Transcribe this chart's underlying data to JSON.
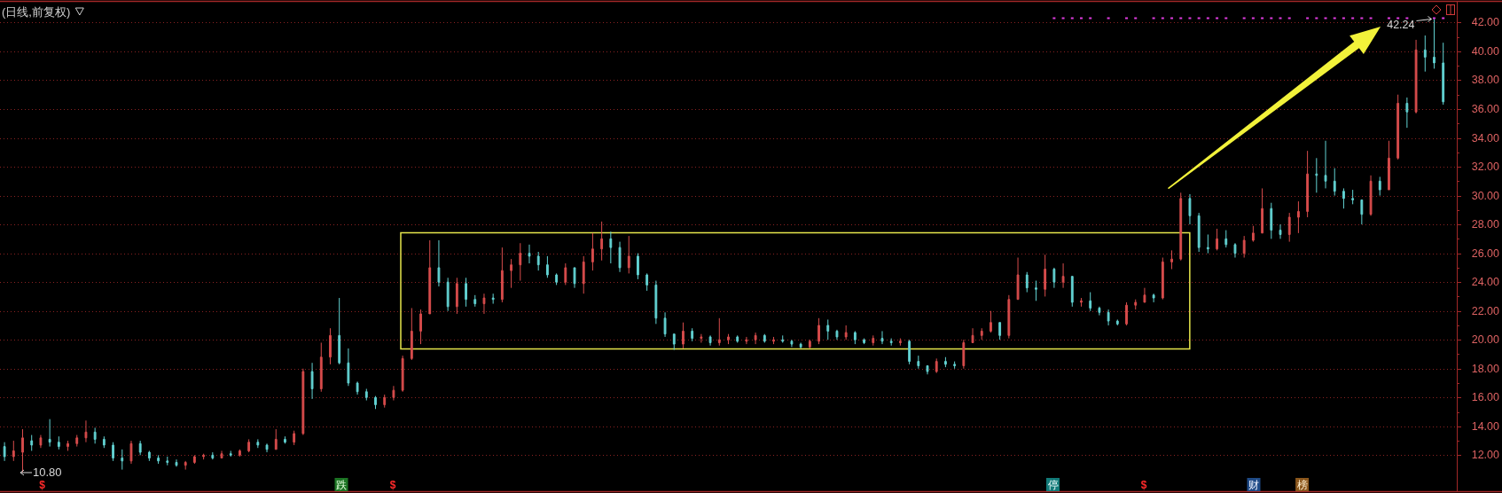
{
  "chart_data": {
    "type": "candlestick",
    "title": "(日线,前复权)",
    "categories": [
      null,
      null,
      null,
      null,
      null,
      null,
      null,
      null,
      null,
      null,
      null,
      null,
      null,
      null,
      null,
      null,
      null,
      null,
      null,
      null,
      null,
      null,
      null,
      null,
      null,
      null,
      null,
      null,
      null,
      null,
      null,
      null,
      null,
      null,
      null,
      null,
      null,
      null,
      null,
      null,
      null,
      null,
      null,
      null,
      null,
      null,
      null,
      null,
      null,
      null,
      null,
      null,
      null,
      null,
      null,
      null,
      null,
      null,
      null,
      null,
      null,
      null,
      null,
      null,
      null,
      null,
      null,
      null,
      null,
      null,
      null,
      null,
      null,
      null,
      null,
      null,
      null,
      null,
      null,
      null,
      null,
      null,
      null,
      null,
      null,
      null,
      null,
      null,
      null,
      null,
      null,
      null,
      null,
      null,
      null,
      null,
      null,
      null,
      null,
      null,
      null,
      null,
      null,
      null,
      null,
      null,
      null,
      null,
      null,
      null,
      null,
      null,
      null,
      null,
      null,
      null,
      null,
      null,
      null,
      null,
      null,
      null,
      null,
      null,
      null,
      null,
      null,
      null,
      null,
      null,
      null,
      null,
      null,
      null,
      null,
      null,
      null,
      null,
      null,
      null,
      null,
      null,
      null,
      null,
      null,
      null,
      null,
      null,
      null,
      null,
      null,
      null,
      null,
      null,
      null,
      null,
      null,
      null,
      null,
      null
    ],
    "ohlc": [
      [
        12.6,
        12.9,
        11.6,
        11.9
      ],
      [
        11.9,
        13.0,
        11.6,
        12.3
      ],
      [
        12.2,
        13.8,
        10.8,
        13.2
      ],
      [
        13.0,
        13.4,
        12.3,
        12.7
      ],
      [
        12.7,
        13.4,
        12.5,
        13.2
      ],
      [
        13.1,
        14.5,
        12.6,
        12.9
      ],
      [
        12.9,
        13.3,
        12.4,
        12.6
      ],
      [
        12.6,
        13.0,
        12.3,
        12.8
      ],
      [
        12.8,
        13.4,
        12.6,
        13.2
      ],
      [
        13.2,
        14.4,
        12.9,
        13.6
      ],
      [
        13.6,
        13.9,
        12.8,
        13.1
      ],
      [
        13.1,
        13.3,
        12.5,
        12.7
      ],
      [
        12.7,
        12.9,
        11.6,
        11.8
      ],
      [
        11.8,
        12.4,
        11.0,
        11.6
      ],
      [
        11.6,
        13.0,
        11.4,
        12.8
      ],
      [
        12.8,
        13.0,
        12.0,
        12.2
      ],
      [
        12.2,
        12.3,
        11.6,
        11.8
      ],
      [
        11.8,
        12.0,
        11.4,
        11.6
      ],
      [
        11.6,
        11.9,
        11.3,
        11.5
      ],
      [
        11.5,
        11.7,
        11.2,
        11.3
      ],
      [
        11.3,
        11.6,
        11.0,
        11.5
      ],
      [
        11.5,
        12.0,
        11.4,
        11.9
      ],
      [
        11.9,
        12.1,
        11.7,
        12.0
      ],
      [
        12.0,
        12.2,
        11.7,
        11.8
      ],
      [
        11.8,
        12.3,
        11.8,
        12.1
      ],
      [
        12.1,
        12.3,
        11.9,
        12.0
      ],
      [
        12.0,
        12.4,
        11.9,
        12.3
      ],
      [
        12.3,
        13.1,
        12.2,
        12.9
      ],
      [
        12.9,
        13.1,
        12.5,
        12.7
      ],
      [
        12.7,
        12.8,
        12.2,
        12.4
      ],
      [
        12.4,
        13.8,
        12.4,
        13.1
      ],
      [
        13.1,
        13.3,
        12.8,
        12.9
      ],
      [
        12.9,
        13.7,
        12.7,
        13.5
      ],
      [
        13.5,
        18.0,
        13.4,
        17.8
      ],
      [
        17.8,
        18.4,
        15.9,
        16.6
      ],
      [
        16.6,
        19.8,
        16.4,
        18.8
      ],
      [
        18.8,
        20.8,
        18.3,
        20.3
      ],
      [
        20.3,
        22.9,
        18.3,
        18.4
      ],
      [
        18.4,
        19.4,
        16.8,
        17.0
      ],
      [
        17.0,
        17.1,
        16.2,
        16.4
      ],
      [
        16.4,
        16.6,
        15.8,
        16.0
      ],
      [
        16.0,
        16.1,
        15.2,
        15.5
      ],
      [
        15.5,
        16.2,
        15.3,
        16.0
      ],
      [
        16.0,
        16.8,
        15.8,
        16.5
      ],
      [
        16.5,
        18.9,
        16.4,
        18.7
      ],
      [
        18.7,
        22.2,
        18.6,
        20.6
      ],
      [
        20.6,
        22.1,
        19.7,
        21.8
      ],
      [
        21.8,
        26.9,
        21.8,
        25.0
      ],
      [
        25.0,
        26.9,
        23.7,
        24.0
      ],
      [
        24.0,
        24.3,
        22.0,
        22.3
      ],
      [
        22.3,
        24.3,
        21.8,
        23.9
      ],
      [
        23.9,
        24.3,
        22.3,
        22.8
      ],
      [
        22.8,
        23.1,
        22.3,
        22.5
      ],
      [
        22.5,
        23.2,
        21.8,
        22.9
      ],
      [
        22.9,
        23.2,
        22.5,
        22.8
      ],
      [
        22.8,
        26.4,
        22.6,
        24.8
      ],
      [
        24.8,
        25.6,
        23.6,
        25.2
      ],
      [
        25.2,
        26.7,
        24.1,
        26.0
      ],
      [
        26.0,
        26.6,
        25.3,
        25.8
      ],
      [
        25.8,
        26.1,
        24.8,
        25.2
      ],
      [
        25.2,
        25.8,
        24.3,
        24.5
      ],
      [
        24.5,
        24.6,
        23.8,
        24.0
      ],
      [
        24.0,
        25.3,
        23.8,
        25.0
      ],
      [
        25.0,
        25.0,
        23.6,
        23.9
      ],
      [
        23.9,
        25.8,
        23.2,
        25.4
      ],
      [
        25.4,
        27.4,
        24.8,
        26.3
      ],
      [
        26.3,
        28.2,
        25.5,
        27.0
      ],
      [
        27.0,
        27.5,
        25.3,
        26.4
      ],
      [
        26.4,
        26.8,
        24.7,
        25.0
      ],
      [
        25.0,
        27.2,
        24.6,
        25.8
      ],
      [
        25.8,
        26.0,
        24.2,
        24.5
      ],
      [
        24.5,
        24.6,
        23.4,
        23.8
      ],
      [
        23.8,
        24.1,
        21.1,
        21.5
      ],
      [
        21.5,
        21.9,
        20.2,
        20.4
      ],
      [
        20.4,
        20.4,
        19.3,
        19.7
      ],
      [
        19.7,
        21.2,
        19.4,
        20.6
      ],
      [
        20.6,
        20.8,
        19.9,
        20.1
      ],
      [
        20.1,
        20.4,
        19.8,
        20.2
      ],
      [
        20.2,
        20.3,
        19.6,
        19.8
      ],
      [
        19.8,
        21.5,
        19.6,
        20.0
      ],
      [
        20.0,
        20.4,
        19.7,
        20.2
      ],
      [
        20.2,
        20.3,
        19.8,
        19.9
      ],
      [
        19.9,
        20.2,
        19.7,
        20.0
      ],
      [
        20.0,
        20.5,
        19.7,
        20.3
      ],
      [
        20.3,
        20.4,
        19.8,
        19.9
      ],
      [
        19.9,
        20.2,
        19.7,
        20.0
      ],
      [
        20.0,
        20.3,
        19.8,
        19.9
      ],
      [
        19.9,
        20.0,
        19.5,
        19.7
      ],
      [
        19.7,
        19.8,
        19.4,
        19.5
      ],
      [
        19.5,
        20.0,
        19.4,
        19.9
      ],
      [
        19.9,
        21.5,
        19.7,
        21.0
      ],
      [
        21.0,
        21.4,
        20.0,
        20.6
      ],
      [
        20.6,
        20.7,
        20.0,
        20.2
      ],
      [
        20.2,
        21.0,
        20.0,
        20.5
      ],
      [
        20.5,
        20.6,
        19.7,
        20.0
      ],
      [
        20.0,
        20.1,
        19.7,
        19.8
      ],
      [
        19.8,
        20.3,
        19.6,
        20.1
      ],
      [
        20.1,
        20.6,
        19.7,
        19.9
      ],
      [
        19.9,
        20.1,
        19.6,
        19.8
      ],
      [
        19.8,
        20.1,
        19.6,
        19.9
      ],
      [
        19.9,
        20.0,
        18.3,
        18.5
      ],
      [
        18.5,
        18.9,
        18.0,
        18.2
      ],
      [
        18.2,
        18.2,
        17.6,
        17.8
      ],
      [
        17.8,
        18.7,
        17.7,
        18.5
      ],
      [
        18.5,
        18.8,
        18.1,
        18.3
      ],
      [
        18.3,
        18.5,
        18.0,
        18.2
      ],
      [
        18.2,
        20.0,
        18.0,
        19.8
      ],
      [
        19.8,
        20.8,
        19.8,
        20.3
      ],
      [
        20.3,
        20.8,
        20.0,
        20.6
      ],
      [
        20.6,
        22.0,
        20.5,
        21.2
      ],
      [
        21.2,
        21.2,
        20.0,
        20.3
      ],
      [
        20.3,
        23.1,
        20.1,
        22.8
      ],
      [
        22.8,
        25.7,
        22.8,
        24.5
      ],
      [
        24.5,
        24.7,
        23.3,
        23.6
      ],
      [
        23.6,
        24.1,
        22.7,
        23.5
      ],
      [
        23.5,
        25.9,
        23.0,
        24.9
      ],
      [
        24.9,
        25.0,
        23.6,
        24.0
      ],
      [
        24.0,
        25.3,
        23.6,
        24.4
      ],
      [
        24.4,
        24.4,
        22.3,
        22.6
      ],
      [
        22.6,
        22.9,
        22.3,
        22.7
      ],
      [
        22.7,
        23.3,
        22.0,
        22.2
      ],
      [
        22.2,
        22.3,
        21.7,
        21.9
      ],
      [
        21.9,
        22.1,
        21.0,
        21.3
      ],
      [
        21.3,
        21.4,
        21.0,
        21.1
      ],
      [
        21.1,
        22.6,
        21.0,
        22.4
      ],
      [
        22.4,
        22.8,
        22.1,
        22.6
      ],
      [
        22.6,
        23.6,
        22.6,
        23.1
      ],
      [
        23.1,
        23.2,
        22.6,
        22.9
      ],
      [
        22.9,
        25.7,
        22.8,
        25.4
      ],
      [
        25.4,
        26.2,
        24.9,
        25.6
      ],
      [
        25.6,
        30.2,
        25.5,
        29.8
      ],
      [
        29.8,
        30.1,
        28.0,
        28.6
      ],
      [
        28.6,
        28.8,
        26.1,
        26.4
      ],
      [
        26.4,
        27.3,
        26.0,
        26.3
      ],
      [
        26.3,
        27.7,
        26.2,
        27.0
      ],
      [
        27.0,
        27.6,
        26.4,
        26.6
      ],
      [
        26.6,
        26.7,
        25.7,
        26.0
      ],
      [
        26.0,
        27.2,
        25.7,
        26.9
      ],
      [
        26.9,
        27.9,
        26.8,
        27.4
      ],
      [
        27.4,
        30.5,
        27.4,
        29.1
      ],
      [
        29.1,
        29.5,
        27.0,
        27.6
      ],
      [
        27.6,
        28.0,
        27.0,
        27.3
      ],
      [
        27.3,
        28.8,
        26.8,
        28.5
      ],
      [
        28.5,
        29.6,
        27.4,
        28.9
      ],
      [
        28.9,
        33.1,
        28.5,
        31.5
      ],
      [
        31.5,
        32.6,
        30.2,
        31.4
      ],
      [
        31.4,
        33.8,
        30.5,
        31.0
      ],
      [
        31.0,
        31.9,
        30.0,
        30.3
      ],
      [
        30.3,
        30.5,
        29.1,
        29.8
      ],
      [
        29.8,
        30.4,
        29.4,
        29.7
      ],
      [
        29.7,
        29.7,
        28.0,
        28.7
      ],
      [
        28.7,
        31.4,
        28.6,
        31.0
      ],
      [
        31.0,
        31.3,
        30.0,
        30.4
      ],
      [
        30.4,
        33.8,
        30.4,
        32.6
      ],
      [
        32.6,
        37.0,
        32.5,
        36.4
      ],
      [
        36.4,
        36.8,
        34.7,
        35.8
      ],
      [
        35.8,
        40.8,
        35.7,
        40.1
      ],
      [
        40.1,
        41.1,
        38.6,
        39.6
      ],
      [
        39.6,
        42.24,
        38.8,
        39.2
      ],
      [
        39.2,
        40.6,
        36.3,
        36.5
      ]
    ],
    "colors": [
      "#62d2d2",
      "#d84c4c",
      "#d84c4c",
      "#62d2d2",
      "#d84c4c",
      "#62d2d2",
      "#62d2d2",
      "#d84c4c",
      "#d84c4c",
      "#d84c4c",
      "#62d2d2",
      "#62d2d2",
      "#62d2d2",
      "#62d2d2",
      "#d84c4c",
      "#62d2d2",
      "#62d2d2",
      "#62d2d2",
      "#62d2d2",
      "#62d2d2",
      "#d84c4c",
      "#d84c4c",
      "#d84c4c",
      "#62d2d2",
      "#d84c4c",
      "#62d2d2",
      "#d84c4c",
      "#d84c4c",
      "#62d2d2",
      "#62d2d2",
      "#d84c4c",
      "#62d2d2",
      "#d84c4c",
      "#d84c4c",
      "#62d2d2",
      "#d84c4c",
      "#d84c4c",
      "#62d2d2",
      "#62d2d2",
      "#62d2d2",
      "#62d2d2",
      "#62d2d2",
      "#d84c4c",
      "#d84c4c",
      "#d84c4c",
      "#d84c4c",
      "#d84c4c",
      "#d84c4c",
      "#62d2d2",
      "#62d2d2",
      "#d84c4c",
      "#62d2d2",
      "#62d2d2",
      "#d84c4c",
      "#62d2d2",
      "#d84c4c",
      "#d84c4c",
      "#d84c4c",
      "#62d2d2",
      "#62d2d2",
      "#62d2d2",
      "#62d2d2",
      "#d84c4c",
      "#62d2d2",
      "#d84c4c",
      "#d84c4c",
      "#d84c4c",
      "#62d2d2",
      "#62d2d2",
      "#d84c4c",
      "#62d2d2",
      "#62d2d2",
      "#62d2d2",
      "#62d2d2",
      "#62d2d2",
      "#d84c4c",
      "#62d2d2",
      "#d84c4c",
      "#62d2d2",
      "#d84c4c",
      "#d84c4c",
      "#62d2d2",
      "#d84c4c",
      "#d84c4c",
      "#62d2d2",
      "#d84c4c",
      "#62d2d2",
      "#62d2d2",
      "#62d2d2",
      "#d84c4c",
      "#d84c4c",
      "#62d2d2",
      "#62d2d2",
      "#d84c4c",
      "#62d2d2",
      "#62d2d2",
      "#d84c4c",
      "#62d2d2",
      "#62d2d2",
      "#d84c4c",
      "#62d2d2",
      "#62d2d2",
      "#62d2d2",
      "#d84c4c",
      "#62d2d2",
      "#62d2d2",
      "#d84c4c",
      "#d84c4c",
      "#d84c4c",
      "#d84c4c",
      "#62d2d2",
      "#d84c4c",
      "#d84c4c",
      "#62d2d2",
      "#62d2d2",
      "#d84c4c",
      "#62d2d2",
      "#d84c4c",
      "#62d2d2",
      "#d84c4c",
      "#62d2d2",
      "#62d2d2",
      "#62d2d2",
      "#62d2d2",
      "#d84c4c",
      "#d84c4c",
      "#d84c4c",
      "#62d2d2",
      "#d84c4c",
      "#d84c4c",
      "#d84c4c",
      "#62d2d2",
      "#62d2d2",
      "#62d2d2",
      "#d84c4c",
      "#62d2d2",
      "#62d2d2",
      "#d84c4c",
      "#d84c4c",
      "#d84c4c",
      "#62d2d2",
      "#62d2d2",
      "#d84c4c",
      "#d84c4c",
      "#d84c4c",
      "#62d2d2",
      "#62d2d2",
      "#62d2d2",
      "#62d2d2",
      "#62d2d2",
      "#62d2d2",
      "#d84c4c",
      "#62d2d2",
      "#d84c4c",
      "#d84c4c",
      "#62d2d2",
      "#d84c4c",
      "#62d2d2",
      "#62d2d2",
      "#62d2d2"
    ],
    "series": [
      {
        "type": "scatter",
        "color": "#e03ce0",
        "marker": "square",
        "values": [
          null,
          null,
          null,
          null,
          null,
          null,
          null,
          null,
          null,
          null,
          null,
          null,
          null,
          null,
          null,
          null,
          null,
          null,
          null,
          null,
          null,
          null,
          null,
          null,
          null,
          null,
          null,
          null,
          null,
          null,
          null,
          null,
          null,
          null,
          null,
          null,
          null,
          null,
          null,
          null,
          null,
          null,
          null,
          null,
          null,
          null,
          null,
          null,
          null,
          null,
          null,
          null,
          null,
          null,
          null,
          null,
          null,
          null,
          null,
          null,
          null,
          null,
          null,
          null,
          null,
          null,
          null,
          null,
          null,
          null,
          null,
          null,
          null,
          null,
          null,
          null,
          null,
          null,
          null,
          null,
          null,
          null,
          null,
          null,
          null,
          null,
          null,
          null,
          null,
          null,
          null,
          null,
          null,
          null,
          null,
          null,
          null,
          null,
          null,
          null,
          null,
          null,
          null,
          null,
          null,
          null,
          null,
          null,
          null,
          null,
          null,
          null,
          null,
          null,
          null,
          null,
          42.3,
          42.3,
          42.3,
          42.3,
          42.3,
          null,
          42.3,
          null,
          42.3,
          42.3,
          null,
          42.3,
          42.3,
          42.3,
          42.3,
          42.3,
          42.3,
          42.3,
          42.3,
          42.3,
          null,
          42.3,
          42.3,
          42.3,
          42.3,
          42.3,
          42.3,
          null,
          42.3,
          42.3,
          42.3,
          42.3,
          42.3,
          42.3,
          42.3,
          42.3,
          null,
          42.3,
          42.3,
          42.3,
          null,
          null,
          42.3,
          42.3
        ]
      }
    ],
    "ylim": [
      9.5,
      43.5
    ],
    "yticks": [
      {
        "value": 12,
        "label": "12.00"
      },
      {
        "value": 14,
        "label": "14.00"
      },
      {
        "value": 16,
        "label": "16.00"
      },
      {
        "value": 18,
        "label": "18.00"
      },
      {
        "value": 20,
        "label": "20.00"
      },
      {
        "value": 22,
        "label": "22.00"
      },
      {
        "value": 24,
        "label": "24.00"
      },
      {
        "value": 26,
        "label": "26.00"
      },
      {
        "value": 28,
        "label": "28.00"
      },
      {
        "value": 30,
        "label": "30.00"
      },
      {
        "value": 32,
        "label": "32.00"
      },
      {
        "value": 34,
        "label": "34.00"
      },
      {
        "value": 36,
        "label": "36.00"
      },
      {
        "value": 38,
        "label": "38.00"
      },
      {
        "value": 40,
        "label": "40.00"
      },
      {
        "value": 42,
        "label": "42.00"
      }
    ],
    "grid": "y",
    "tick_labels": "y",
    "annotations": [
      "10.80",
      {
        "text": "42.24",
        "y": 42.24
      },
      "$",
      "跌",
      "$",
      "停",
      "$",
      "财",
      "榜"
    ]
  }
}
